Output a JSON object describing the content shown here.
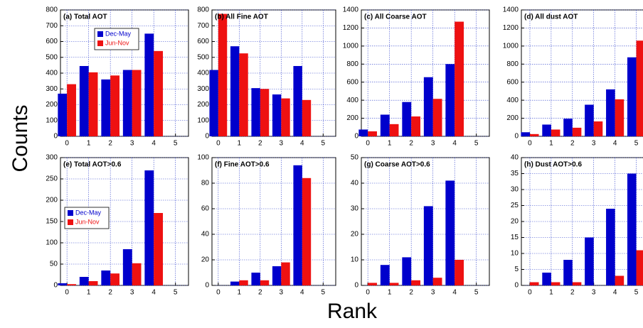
{
  "ylabel": "Counts",
  "xlabel": "Rank",
  "chart_data": [
    {
      "type": "bar",
      "title": "(a) Total AOT",
      "x": [
        0,
        1,
        2,
        3,
        4
      ],
      "xlim": [
        -0.3,
        5.6
      ],
      "xticks": [
        0,
        1,
        2,
        3,
        4,
        5
      ],
      "ylim": [
        0,
        800
      ],
      "yticks": [
        0,
        100,
        200,
        300,
        400,
        500,
        600,
        700,
        800
      ],
      "grid": true,
      "legend": "upper left",
      "series": [
        {
          "name": "Dec-May",
          "color": "#0000cc",
          "values": [
            270,
            445,
            360,
            420,
            650
          ]
        },
        {
          "name": "Jun-Nov",
          "color": "#ee1111",
          "values": [
            330,
            405,
            385,
            420,
            540
          ]
        }
      ]
    },
    {
      "type": "bar",
      "title": "(b) All Fine AOT",
      "x": [
        0,
        1,
        2,
        3,
        4
      ],
      "xlim": [
        -0.3,
        5.6
      ],
      "xticks": [
        0,
        1,
        2,
        3,
        4,
        5
      ],
      "ylim": [
        0,
        800
      ],
      "yticks": [
        0,
        100,
        200,
        300,
        400,
        500,
        600,
        700,
        800
      ],
      "grid": true,
      "series": [
        {
          "name": "Dec-May",
          "color": "#0000cc",
          "values": [
            420,
            570,
            305,
            265,
            445
          ]
        },
        {
          "name": "Jun-Nov",
          "color": "#ee1111",
          "values": [
            775,
            525,
            300,
            240,
            230
          ]
        }
      ]
    },
    {
      "type": "bar",
      "title": "(c) All Coarse AOT",
      "x": [
        0,
        1,
        2,
        3,
        4
      ],
      "xlim": [
        -0.3,
        5.6
      ],
      "xticks": [
        0,
        1,
        2,
        3,
        4,
        5
      ],
      "ylim": [
        0,
        1400
      ],
      "yticks": [
        0,
        200,
        400,
        600,
        800,
        1000,
        1200,
        1400
      ],
      "grid": true,
      "series": [
        {
          "name": "Dec-May",
          "color": "#0000cc",
          "values": [
            75,
            240,
            380,
            655,
            800
          ]
        },
        {
          "name": "Jun-Nov",
          "color": "#ee1111",
          "values": [
            55,
            135,
            220,
            415,
            1270
          ]
        }
      ]
    },
    {
      "type": "bar",
      "title": "(d) All dust AOT",
      "x": [
        0,
        1,
        2,
        3,
        4,
        5
      ],
      "xlim": [
        -0.4,
        5.35
      ],
      "xticks": [
        0,
        1,
        2,
        3,
        4,
        5
      ],
      "ylim": [
        0,
        1400
      ],
      "yticks": [
        0,
        200,
        400,
        600,
        800,
        1000,
        1200,
        1400
      ],
      "grid": true,
      "series": [
        {
          "name": "Dec-May",
          "color": "#0000cc",
          "values": [
            45,
            130,
            195,
            350,
            520,
            875
          ]
        },
        {
          "name": "Jun-Nov",
          "color": "#ee1111",
          "values": [
            25,
            75,
            95,
            165,
            410,
            1060
          ]
        }
      ]
    },
    {
      "type": "bar",
      "title": "(e) Total AOT>0.6",
      "x": [
        0,
        1,
        2,
        3,
        4
      ],
      "xlim": [
        -0.3,
        5.6
      ],
      "xticks": [
        0,
        1,
        2,
        3,
        4,
        5
      ],
      "ylim": [
        0,
        300
      ],
      "yticks": [
        0,
        50,
        100,
        150,
        200,
        250,
        300
      ],
      "grid": true,
      "legend": "center left",
      "series": [
        {
          "name": "Dec-May",
          "color": "#0000cc",
          "values": [
            5,
            20,
            35,
            85,
            270
          ]
        },
        {
          "name": "Jun-Nov",
          "color": "#ee1111",
          "values": [
            3,
            10,
            28,
            52,
            170
          ]
        }
      ]
    },
    {
      "type": "bar",
      "title": "(f) Fine AOT>0.6",
      "x": [
        0,
        1,
        2,
        3,
        4
      ],
      "xlim": [
        -0.3,
        5.6
      ],
      "xticks": [
        0,
        1,
        2,
        3,
        4,
        5
      ],
      "ylim": [
        0,
        100
      ],
      "yticks": [
        0,
        20,
        40,
        60,
        80,
        100
      ],
      "grid": true,
      "series": [
        {
          "name": "Dec-May",
          "color": "#0000cc",
          "values": [
            0,
            3,
            10,
            15,
            94
          ]
        },
        {
          "name": "Jun-Nov",
          "color": "#ee1111",
          "values": [
            0,
            4,
            4,
            18,
            84
          ]
        }
      ]
    },
    {
      "type": "bar",
      "title": "(g) Coarse AOT>0.6",
      "x": [
        0,
        1,
        2,
        3,
        4
      ],
      "xlim": [
        -0.3,
        5.6
      ],
      "xticks": [
        0,
        1,
        2,
        3,
        4,
        5
      ],
      "ylim": [
        0,
        50
      ],
      "yticks": [
        0,
        10,
        20,
        30,
        40,
        50
      ],
      "grid": true,
      "series": [
        {
          "name": "Dec-May",
          "color": "#0000cc",
          "values": [
            0,
            8,
            11,
            31,
            41
          ]
        },
        {
          "name": "Jun-Nov",
          "color": "#ee1111",
          "values": [
            1,
            1,
            2,
            3,
            10
          ]
        }
      ]
    },
    {
      "type": "bar",
      "title": "(h) Dust AOT>0.6",
      "x": [
        0,
        1,
        2,
        3,
        4,
        5
      ],
      "xlim": [
        -0.4,
        5.35
      ],
      "xticks": [
        0,
        1,
        2,
        3,
        4,
        5
      ],
      "ylim": [
        0,
        40
      ],
      "yticks": [
        0,
        5,
        10,
        15,
        20,
        25,
        30,
        35,
        40
      ],
      "grid": true,
      "series": [
        {
          "name": "Dec-May",
          "color": "#0000cc",
          "values": [
            0,
            4,
            8,
            15,
            24,
            35
          ]
        },
        {
          "name": "Jun-Nov",
          "color": "#ee1111",
          "values": [
            1,
            1,
            1,
            0,
            3,
            11
          ]
        }
      ]
    }
  ]
}
